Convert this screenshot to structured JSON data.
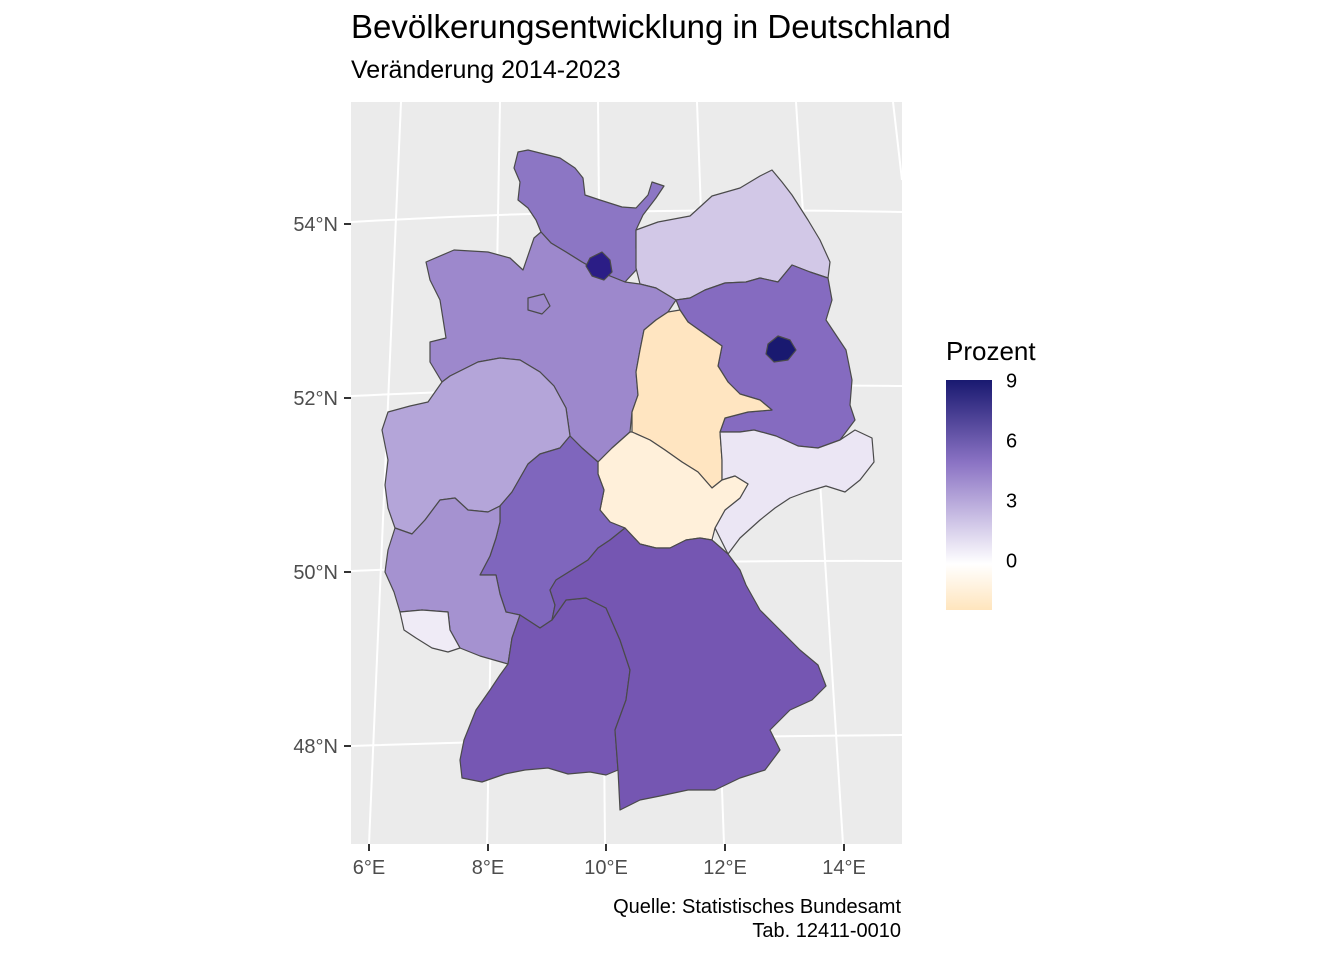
{
  "title": "Bevölkerungsentwicklung in Deutschland",
  "subtitle": "Veränderung 2014-2023",
  "caption_line1": "Quelle: Statistisches Bundesamt",
  "caption_line2": "Tab. 12411-0010",
  "legend": {
    "title": "Prozent",
    "ticks": [
      "9",
      "6",
      "3",
      "0"
    ],
    "colors": {
      "max": "#191970",
      "mid": "#8b73c4",
      "zero": "#ffffff",
      "min": "#ffe5bd"
    }
  },
  "axes": {
    "lat_labels": [
      "54°N",
      "52°N",
      "50°N",
      "48°N"
    ],
    "lon_labels": [
      "6°E",
      "8°E",
      "10°E",
      "12°E",
      "14°E"
    ],
    "panel_background": "#ebebeb",
    "grid_color": "#ffffff"
  },
  "chart_data": {
    "type": "choropleth",
    "value_label": "Prozent",
    "scale_range": [
      -2,
      9
    ],
    "regions": [
      {
        "name": "Schleswig-Holstein",
        "value": 4.8,
        "color": "#8c76c4"
      },
      {
        "name": "Hamburg",
        "value": 8.0,
        "color": "#2b1d86"
      },
      {
        "name": "Mecklenburg-Vorpommern",
        "value": 2.3,
        "color": "#d2c8e7"
      },
      {
        "name": "Niedersachsen",
        "value": 4.0,
        "color": "#9d88cc"
      },
      {
        "name": "Bremen",
        "value": 4.0,
        "color": "#9d88cc"
      },
      {
        "name": "Berlin",
        "value": 9.0,
        "color": "#191970"
      },
      {
        "name": "Brandenburg",
        "value": 5.2,
        "color": "#856bc0"
      },
      {
        "name": "Sachsen-Anhalt",
        "value": -1.8,
        "color": "#ffe5c1"
      },
      {
        "name": "Sachsen",
        "value": 1.0,
        "color": "#ebe6f4"
      },
      {
        "name": "Thüringen",
        "value": -1.2,
        "color": "#fff0da"
      },
      {
        "name": "Nordrhein-Westfalen",
        "value": 3.3,
        "color": "#b4a5d9"
      },
      {
        "name": "Hessen",
        "value": 5.5,
        "color": "#7f66bd"
      },
      {
        "name": "Rheinland-Pfalz",
        "value": 3.8,
        "color": "#a592d0"
      },
      {
        "name": "Saarland",
        "value": 0.8,
        "color": "#efebf6"
      },
      {
        "name": "Baden-Württemberg",
        "value": 6.2,
        "color": "#7657b3"
      },
      {
        "name": "Bayern",
        "value": 6.3,
        "color": "#7556b2"
      }
    ]
  }
}
